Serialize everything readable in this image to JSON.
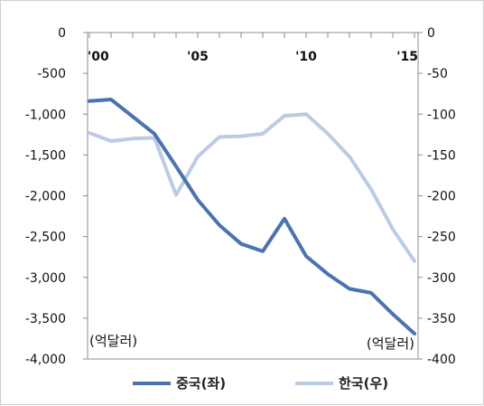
{
  "chart_data": {
    "type": "line",
    "x": [
      2000,
      2001,
      2002,
      2003,
      2004,
      2005,
      2006,
      2007,
      2008,
      2009,
      2010,
      2011,
      2012,
      2013,
      2014,
      2015
    ],
    "x_tick_labels": [
      "'00",
      "'05",
      "'10",
      "'15"
    ],
    "x_tick_values": [
      2000,
      2005,
      2010,
      2015
    ],
    "xlim": [
      2000,
      2015
    ],
    "y_left": {
      "ylim": [
        -4000,
        0
      ],
      "tick_values": [
        0,
        -500,
        -1000,
        -1500,
        -2000,
        -2500,
        -3000,
        -3500,
        -4000
      ],
      "tick_labels": [
        "0",
        "-500",
        "-1,000",
        "-1,500",
        "-2,000",
        "-2,500",
        "-3,000",
        "-3,500",
        "-4,000"
      ],
      "unit": "(억달러)"
    },
    "y_right": {
      "ylim": [
        -400,
        0
      ],
      "tick_values": [
        0,
        -50,
        -100,
        -150,
        -200,
        -250,
        -300,
        -350,
        -400
      ],
      "tick_labels": [
        "0",
        "-50",
        "-100",
        "-150",
        "-200",
        "-250",
        "-300",
        "-350",
        "-400"
      ],
      "unit": "(억달러)"
    },
    "series": [
      {
        "name": "중국(좌)",
        "axis": "left",
        "color": "#4a73b0",
        "values": [
          -840,
          -820,
          -1030,
          -1240,
          -1640,
          -2050,
          -2360,
          -2590,
          -2680,
          -2280,
          -2740,
          -2960,
          -3140,
          -3190,
          -3450,
          -3690
        ]
      },
      {
        "name": "한국(우)",
        "axis": "right",
        "color": "#bccbe4",
        "values": [
          -123,
          -133,
          -130,
          -129,
          -199,
          -152,
          -128,
          -127,
          -124,
          -102,
          -100,
          -124,
          -152,
          -192,
          -241,
          -280
        ]
      }
    ],
    "grid": false,
    "legend": "bottom"
  }
}
